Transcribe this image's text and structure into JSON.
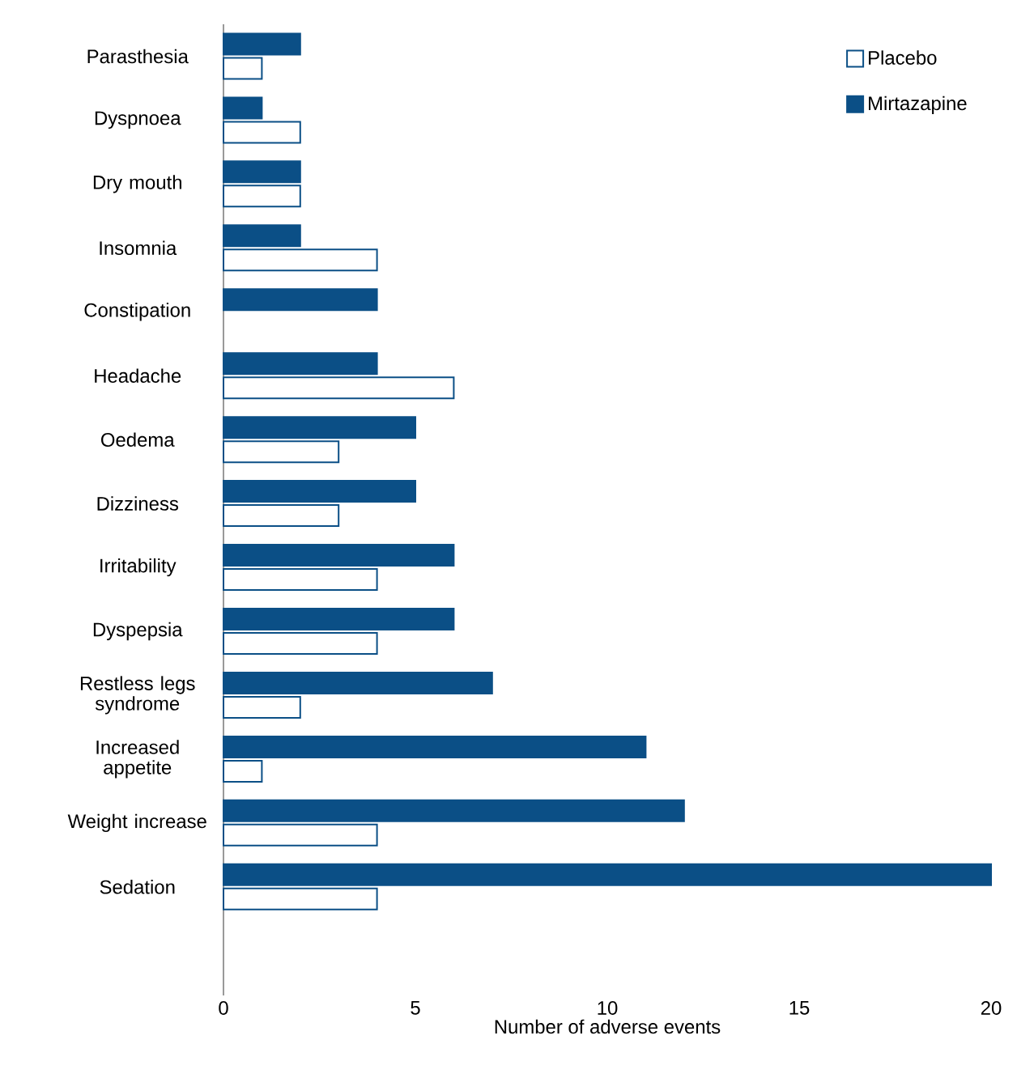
{
  "chart_data": {
    "type": "bar",
    "orientation": "horizontal",
    "xlabel": "Number of adverse events",
    "categories": [
      "Parasthesia",
      "Dyspnoea",
      "Dry mouth",
      "Insomnia",
      "Constipation",
      "Headache",
      "Oedema",
      "Dizziness",
      "Irritability",
      "Dyspepsia",
      "Restless legs syndrome",
      "Increased appetite",
      "Weight increase",
      "Sedation"
    ],
    "series": [
      {
        "name": "Placebo",
        "color": "#ffffff",
        "values": [
          1,
          2,
          2,
          4,
          0,
          6,
          3,
          3,
          4,
          4,
          2,
          1,
          4,
          4
        ]
      },
      {
        "name": "Mirtazapine",
        "color": "#0b4f86",
        "values": [
          2,
          1,
          2,
          2,
          4,
          4,
          5,
          5,
          6,
          6,
          7,
          11,
          12,
          20
        ]
      }
    ],
    "xlim": [
      0,
      20
    ],
    "xticks": [
      0,
      5,
      10,
      15,
      20
    ],
    "grid": false,
    "legend": "top right"
  }
}
